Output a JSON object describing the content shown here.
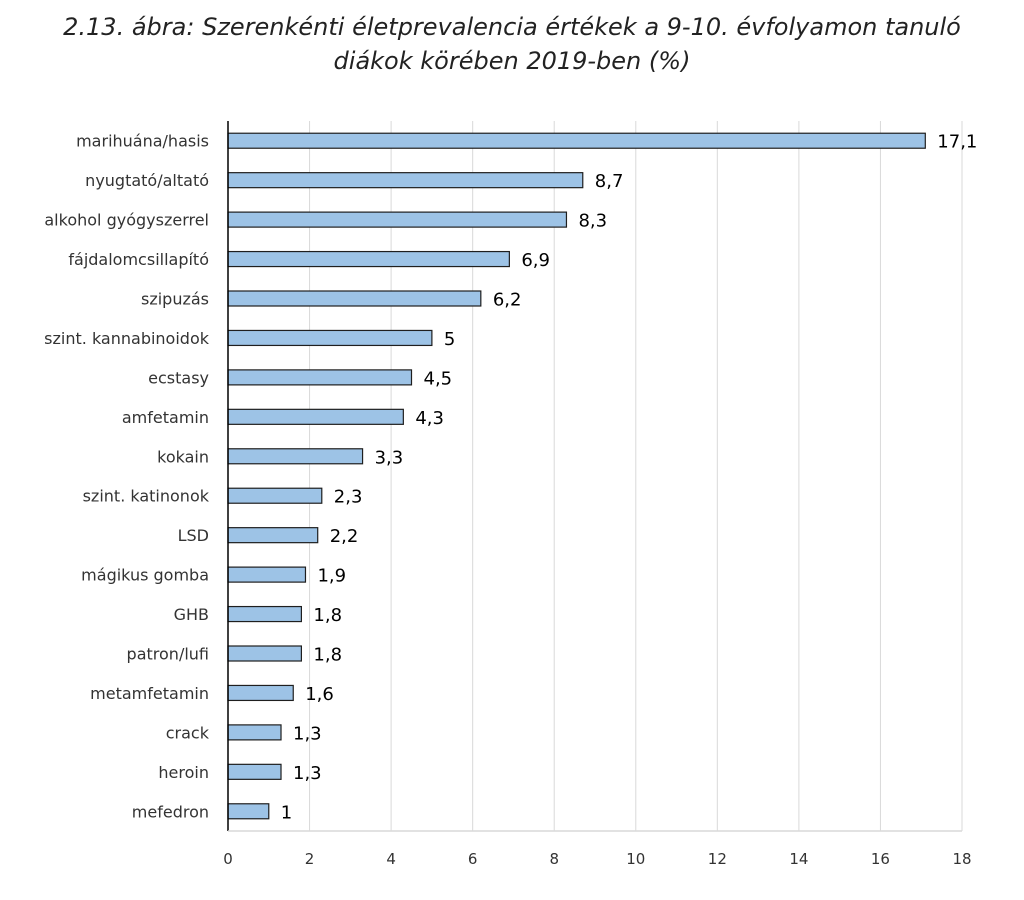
{
  "chart_data": {
    "type": "bar",
    "orientation": "horizontal",
    "title_lines": [
      "2.13. ábra: Szerenkénti életprevalencia értékek a 9-10. évfolyamon tanuló",
      "diákok körében 2019-ben (%)"
    ],
    "categories": [
      "marihuána/hasis",
      "nyugtató/altató",
      "alkohol gyógyszerrel",
      "fájdalomcsillapító",
      "szipuzás",
      "szint. kannabinoidok",
      "ecstasy",
      "amfetamin",
      "kokain",
      "szint. katinonok",
      "LSD",
      "mágikus gomba",
      "GHB",
      "patron/lufi",
      "metamfetamin",
      "crack",
      "heroin",
      "mefedron"
    ],
    "values": [
      17.1,
      8.7,
      8.3,
      6.9,
      6.2,
      5,
      4.5,
      4.3,
      3.3,
      2.3,
      2.2,
      1.9,
      1.8,
      1.8,
      1.6,
      1.3,
      1.3,
      1
    ],
    "value_labels": [
      "17,1",
      "8,7",
      "8,3",
      "6,9",
      "6,2",
      "5",
      "4,5",
      "4,3",
      "3,3",
      "2,3",
      "2,2",
      "1,9",
      "1,8",
      "1,8",
      "1,6",
      "1,3",
      "1,3",
      "1"
    ],
    "xlim": [
      0,
      18
    ],
    "xticks": [
      0,
      2,
      4,
      6,
      8,
      10,
      12,
      14,
      16,
      18
    ],
    "xtick_labels": [
      "0",
      "2",
      "4",
      "6",
      "8",
      "10",
      "12",
      "14",
      "16",
      "18"
    ],
    "grid": "vertical",
    "legend": "none",
    "colors": {
      "bar_fill": "#9dc3e6",
      "bar_stroke": "#1f1f1f",
      "gridline": "#d9d9d9",
      "axis": "#000000"
    }
  }
}
